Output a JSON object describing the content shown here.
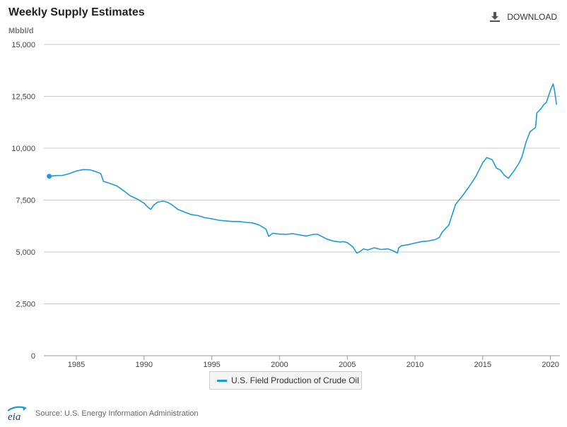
{
  "header": {
    "title": "Weekly Supply Estimates",
    "download_label": "DOWNLOAD",
    "download_icon": "download-icon"
  },
  "footer": {
    "logo_text": "eia",
    "source": "Source: U.S. Energy Information Administration"
  },
  "colors": {
    "series": "#1c9ad6",
    "grid": "#c8c8c8",
    "axis": "#9a9a9a"
  },
  "chart_data": {
    "type": "line",
    "title": "Weekly Supply Estimates",
    "ylabel": "Mbbl/d",
    "xlabel": "",
    "ylim": [
      0,
      15000
    ],
    "xlim": [
      1982.6,
      2020.7
    ],
    "y_ticks": [
      0,
      2500,
      5000,
      7500,
      10000,
      12500,
      15000
    ],
    "y_tick_labels": [
      "0",
      "2,500",
      "5,000",
      "7,500",
      "10,000",
      "12,500",
      "15,000"
    ],
    "x_ticks": [
      1985,
      1990,
      1995,
      2000,
      2005,
      2010,
      2015,
      2020
    ],
    "x_tick_labels": [
      "1985",
      "1990",
      "1995",
      "2000",
      "2005",
      "2010",
      "2015",
      "2020"
    ],
    "grid": true,
    "legend": "bottom-center",
    "series": [
      {
        "name": "U.S. Field Production of Crude Oil",
        "x": [
          1983.0,
          1983.5,
          1984.0,
          1984.5,
          1985.0,
          1985.5,
          1986.0,
          1986.3,
          1986.8,
          1987.0,
          1987.5,
          1988.0,
          1988.5,
          1989.0,
          1989.5,
          1990.0,
          1990.3,
          1990.5,
          1990.7,
          1991.0,
          1991.4,
          1991.7,
          1992.0,
          1992.5,
          1993.0,
          1993.5,
          1994.0,
          1994.5,
          1995.0,
          1995.5,
          1996.0,
          1996.5,
          1997.0,
          1997.5,
          1998.0,
          1998.5,
          1999.0,
          1999.2,
          1999.5,
          2000.0,
          2000.5,
          2001.0,
          2001.5,
          2002.0,
          2002.5,
          2002.8,
          2003.0,
          2003.5,
          2004.0,
          2004.5,
          2004.7,
          2005.0,
          2005.4,
          2005.7,
          2005.9,
          2006.2,
          2006.5,
          2007.0,
          2007.5,
          2008.0,
          2008.4,
          2008.7,
          2008.8,
          2009.0,
          2009.5,
          2010.0,
          2010.5,
          2011.0,
          2011.5,
          2011.8,
          2012.0,
          2012.5,
          2012.7,
          2013.0,
          2013.5,
          2014.0,
          2014.5,
          2015.0,
          2015.3,
          2015.7,
          2016.0,
          2016.3,
          2016.6,
          2016.9,
          2017.3,
          2017.6,
          2017.7,
          2017.9,
          2018.2,
          2018.5,
          2018.9,
          2019.0,
          2019.3,
          2019.5,
          2019.7,
          2020.0,
          2020.1,
          2020.2,
          2020.3,
          2020.45
        ],
        "values": [
          8650,
          8680,
          8690,
          8780,
          8900,
          8970,
          8960,
          8900,
          8780,
          8400,
          8300,
          8180,
          7950,
          7700,
          7550,
          7350,
          7150,
          7050,
          7250,
          7400,
          7450,
          7400,
          7300,
          7050,
          6920,
          6800,
          6750,
          6650,
          6600,
          6530,
          6500,
          6470,
          6470,
          6430,
          6400,
          6300,
          6100,
          5750,
          5900,
          5860,
          5850,
          5880,
          5820,
          5770,
          5850,
          5850,
          5790,
          5620,
          5520,
          5480,
          5500,
          5450,
          5250,
          4950,
          5000,
          5150,
          5100,
          5200,
          5120,
          5150,
          5050,
          4950,
          5200,
          5300,
          5350,
          5430,
          5500,
          5530,
          5600,
          5700,
          5950,
          6300,
          6700,
          7300,
          7700,
          8150,
          8650,
          9300,
          9550,
          9450,
          9050,
          8950,
          8700,
          8550,
          8900,
          9200,
          9300,
          9600,
          10300,
          10800,
          11000,
          11700,
          11900,
          12100,
          12200,
          12800,
          12950,
          13100,
          12800,
          12100
        ]
      }
    ]
  }
}
